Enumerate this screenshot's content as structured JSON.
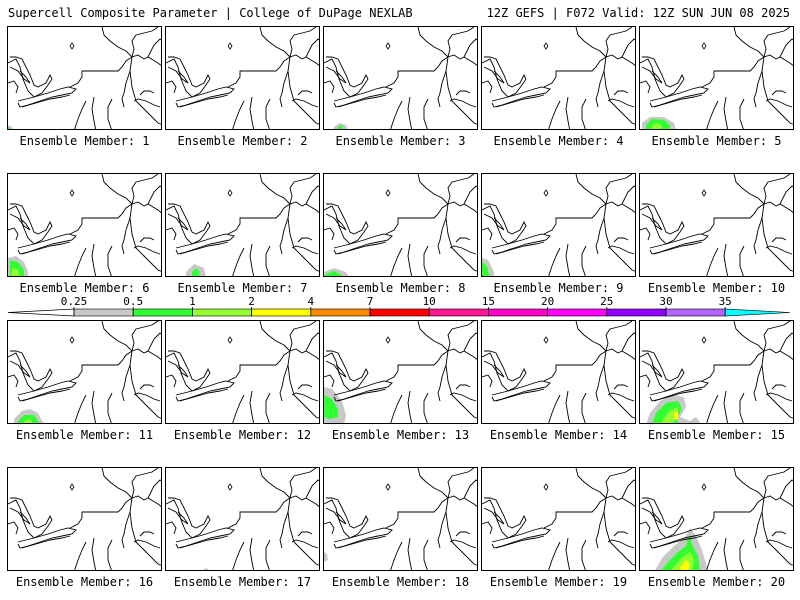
{
  "header": {
    "title_left": "Supercell Composite Parameter | College of DuPage NEXLAB",
    "title_right": "12Z GEFS | F072 Valid: 12Z SUN JUN 08 2025"
  },
  "legend": {
    "thresholds": [
      "0.25",
      "0.5",
      "1",
      "2",
      "4",
      "7",
      "10",
      "15",
      "20",
      "25",
      "30",
      "35"
    ],
    "colors": [
      "#c8c8c8",
      "#32ff32",
      "#96ff32",
      "#ffff00",
      "#ff8c00",
      "#ff0000",
      "#ff1493",
      "#ff00c8",
      "#ff00ff",
      "#9400ff",
      "#b464ff",
      "#00ffff"
    ]
  },
  "panels": [
    {
      "label": "Ensemble Member: 1"
    },
    {
      "label": "Ensemble Member: 2"
    },
    {
      "label": "Ensemble Member: 3"
    },
    {
      "label": "Ensemble Member: 4"
    },
    {
      "label": "Ensemble Member: 5"
    },
    {
      "label": "Ensemble Member: 6"
    },
    {
      "label": "Ensemble Member: 7"
    },
    {
      "label": "Ensemble Member: 8"
    },
    {
      "label": "Ensemble Member: 9"
    },
    {
      "label": "Ensemble Member: 10"
    },
    {
      "label": "Ensemble Member: 11"
    },
    {
      "label": "Ensemble Member: 12"
    },
    {
      "label": "Ensemble Member: 13"
    },
    {
      "label": "Ensemble Member: 14"
    },
    {
      "label": "Ensemble Member: 15"
    },
    {
      "label": "Ensemble Member: 16"
    },
    {
      "label": "Ensemble Member: 17"
    },
    {
      "label": "Ensemble Member: 18"
    },
    {
      "label": "Ensemble Member: 19"
    },
    {
      "label": "Ensemble Member: 20"
    }
  ]
}
